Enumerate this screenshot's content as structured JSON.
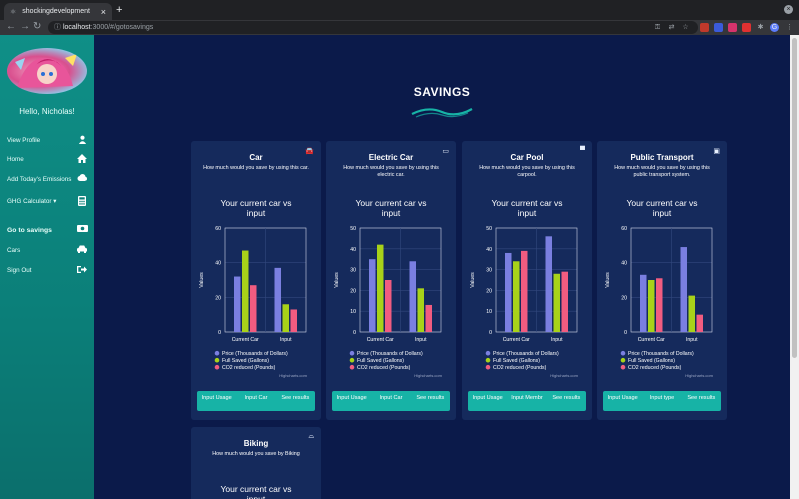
{
  "browser": {
    "tab_title": "shockingdevelopment",
    "url_host": "localhost",
    "url_path": ":3000/#/gotosavings"
  },
  "sidebar": {
    "greeting": "Hello, Nicholas!",
    "items": [
      {
        "label": "View Profile",
        "icon": "user-icon"
      },
      {
        "label": "Home",
        "icon": "home-icon"
      },
      {
        "label": "Add Today's Emissions",
        "icon": "cloud-icon"
      },
      {
        "label": "GHG Calculator",
        "icon": "calculator-icon"
      },
      {
        "label": "Go to savings",
        "icon": "money-icon"
      },
      {
        "label": "Cars",
        "icon": "car-icon"
      },
      {
        "label": "Sign Out",
        "icon": "sign-out-icon"
      }
    ]
  },
  "page": {
    "title": "SAVINGS",
    "accent": "#17b3a6"
  },
  "cards": [
    {
      "title": "Car",
      "desc": "How much would you save by using this car.",
      "icon": "car-icon",
      "buttons": [
        "Input Usage",
        "Input Car",
        "See results"
      ]
    },
    {
      "title": "Electric Car",
      "desc": "How much would you save by using this electric car.",
      "icon": "battery-icon",
      "buttons": [
        "Input Usage",
        "Input Car",
        "See results"
      ]
    },
    {
      "title": "Car Pool",
      "desc": "How much would you save by using this carpool.",
      "icon": "truck-icon",
      "buttons": [
        "Input Usage",
        "Input Membr",
        "See results"
      ]
    },
    {
      "title": "Public Transport",
      "desc": "How much would you save by using this public transport system.",
      "icon": "bus-icon",
      "buttons": [
        "Input Usage",
        "Input type",
        "See results"
      ]
    },
    {
      "title": "Biking",
      "desc": "How much would you save by Biking",
      "icon": "bike-icon",
      "buttons": []
    }
  ],
  "chart_data": [
    {
      "type": "bar",
      "title": "Your current car vs input",
      "ylabel": "Values",
      "ylim": [
        0,
        60
      ],
      "yticks": [
        0,
        20,
        40,
        60
      ],
      "categories": [
        "Current Car",
        "Input"
      ],
      "series": [
        {
          "name": "Price (Thousands of Dollars)",
          "color": "#7a7fe0",
          "values": [
            32,
            37
          ]
        },
        {
          "name": "Full Saved (Gallons)",
          "color": "#a8d219",
          "values": [
            47,
            16
          ]
        },
        {
          "name": "CO2 reduced (Pounds)",
          "color": "#f15c80",
          "values": [
            27,
            13
          ]
        }
      ],
      "credit": "Highcharts.com"
    },
    {
      "type": "bar",
      "title": "Your current car vs input",
      "ylabel": "Values",
      "ylim": [
        0,
        50
      ],
      "yticks": [
        0,
        10,
        20,
        30,
        40,
        50
      ],
      "categories": [
        "Current Car",
        "Input"
      ],
      "series": [
        {
          "name": "Price (Thousands of Dollars)",
          "color": "#7a7fe0",
          "values": [
            35,
            34
          ]
        },
        {
          "name": "Full Saved (Gallons)",
          "color": "#a8d219",
          "values": [
            42,
            21
          ]
        },
        {
          "name": "CO2 reduced (Pounds)",
          "color": "#f15c80",
          "values": [
            25,
            13
          ]
        }
      ],
      "credit": "Highcharts.com"
    },
    {
      "type": "bar",
      "title": "Your current car vs input",
      "ylabel": "Values",
      "ylim": [
        0,
        50
      ],
      "yticks": [
        0,
        10,
        20,
        30,
        40,
        50
      ],
      "categories": [
        "Current Car",
        "Input"
      ],
      "series": [
        {
          "name": "Price (Thousands of Dollars)",
          "color": "#7a7fe0",
          "values": [
            38,
            46
          ]
        },
        {
          "name": "Full Saved (Gallons)",
          "color": "#a8d219",
          "values": [
            34,
            28
          ]
        },
        {
          "name": "CO2 reduced (Pounds)",
          "color": "#f15c80",
          "values": [
            39,
            29
          ]
        }
      ],
      "credit": "Highcharts.com"
    },
    {
      "type": "bar",
      "title": "Your current car vs input",
      "ylabel": "Values",
      "ylim": [
        0,
        60
      ],
      "yticks": [
        0,
        20,
        40,
        60
      ],
      "categories": [
        "Current Car",
        "Input"
      ],
      "series": [
        {
          "name": "Price (Thousands of Dollars)",
          "color": "#7a7fe0",
          "values": [
            33,
            49
          ]
        },
        {
          "name": "Full Saved (Gallons)",
          "color": "#a8d219",
          "values": [
            30,
            21
          ]
        },
        {
          "name": "CO2 reduced (Pounds)",
          "color": "#f15c80",
          "values": [
            31,
            10
          ]
        }
      ],
      "credit": "Highcharts.com"
    },
    {
      "type": "bar",
      "title": "Your current car vs input",
      "ylabel": "",
      "categories": [],
      "series": []
    }
  ]
}
